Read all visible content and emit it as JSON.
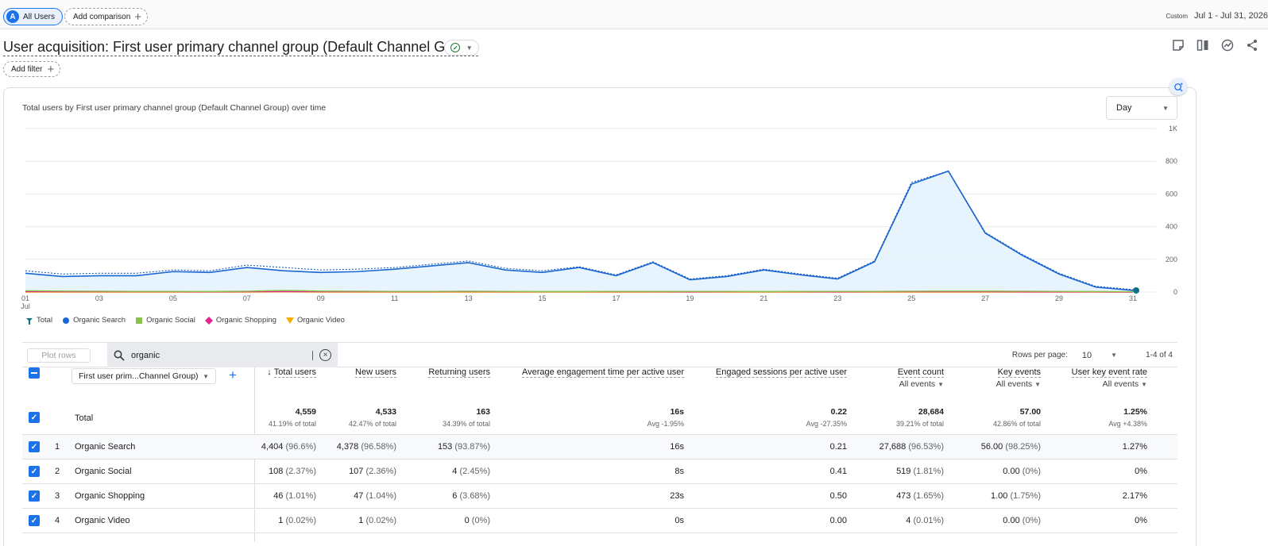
{
  "topbar": {
    "users_chip": {
      "avatar_letter": "A",
      "label": "All Users"
    },
    "add_comparison": "Add comparison",
    "date_tag": "Custom",
    "date_range": "Jul 1 - Jul 31, 2026"
  },
  "report": {
    "title": "User acquisition: First user primary channel group (Default Channel Group)",
    "add_filter": "Add filter"
  },
  "chart_card": {
    "title": "Total users by First user primary channel group (Default Channel Group) over time",
    "granularity": "Day"
  },
  "chart_data": {
    "type": "line",
    "x": [
      "01",
      "02",
      "03",
      "04",
      "05",
      "06",
      "07",
      "08",
      "09",
      "10",
      "11",
      "12",
      "13",
      "14",
      "15",
      "16",
      "17",
      "18",
      "19",
      "20",
      "21",
      "22",
      "23",
      "24",
      "25",
      "26",
      "27",
      "28",
      "29",
      "30",
      "31"
    ],
    "x_tick_labels": [
      "01",
      "03",
      "05",
      "07",
      "09",
      "11",
      "13",
      "15",
      "17",
      "19",
      "21",
      "23",
      "25",
      "27",
      "29",
      "31"
    ],
    "x_sublabel": "Jul",
    "y_tick_labels": [
      "1K",
      "800",
      "600",
      "400",
      "200",
      "0"
    ],
    "ylim": [
      0,
      1000
    ],
    "grid": true,
    "legend_position": "bottom-left",
    "series": [
      {
        "name": "Total",
        "color": "#1a73e8",
        "style": "dotted",
        "values": [
          130,
          110,
          115,
          115,
          135,
          130,
          165,
          150,
          135,
          140,
          150,
          170,
          190,
          145,
          130,
          155,
          105,
          185,
          80,
          100,
          140,
          110,
          85,
          190,
          670,
          740,
          365,
          230,
          115,
          35,
          15
        ]
      },
      {
        "name": "Organic Search",
        "color": "#1967d2",
        "style": "solid",
        "values": [
          115,
          95,
          100,
          100,
          125,
          120,
          150,
          130,
          120,
          125,
          140,
          160,
          180,
          135,
          120,
          150,
          100,
          180,
          75,
          95,
          135,
          105,
          80,
          185,
          660,
          740,
          360,
          225,
          110,
          30,
          10
        ]
      },
      {
        "name": "Organic Social",
        "color": "#8bc34a",
        "style": "solid",
        "values": [
          8,
          6,
          5,
          4,
          4,
          3,
          5,
          10,
          6,
          5,
          4,
          4,
          5,
          4,
          3,
          3,
          4,
          4,
          4,
          4,
          3,
          4,
          4,
          4,
          5,
          6,
          6,
          5,
          4,
          3,
          2
        ]
      },
      {
        "name": "Organic Shopping",
        "color": "#e52592",
        "style": "solid",
        "values": [
          3,
          2,
          2,
          2,
          2,
          1,
          2,
          3,
          2,
          2,
          2,
          2,
          3,
          2,
          2,
          2,
          2,
          2,
          1,
          2,
          2,
          2,
          1,
          2,
          2,
          2,
          2,
          1,
          1,
          1,
          0
        ]
      },
      {
        "name": "Organic Video",
        "color": "#f9ab00",
        "style": "solid",
        "values": [
          0,
          0,
          0,
          0,
          0,
          0,
          0,
          1,
          0,
          0,
          0,
          0,
          0,
          0,
          0,
          0,
          0,
          0,
          0,
          0,
          0,
          0,
          0,
          0,
          0,
          0,
          0,
          0,
          0,
          0,
          0
        ]
      }
    ]
  },
  "table_toolbar": {
    "plot_rows": "Plot rows",
    "search_value": "organic",
    "rows_per_page_label": "Rows per page:",
    "rows_per_page": "10",
    "range": "1-4 of 4"
  },
  "table": {
    "dimension_select": "First user prim...Channel Group)",
    "columns": [
      {
        "label": "Total users",
        "sorted": true,
        "sub": ""
      },
      {
        "label": "New users",
        "sub": ""
      },
      {
        "label": "Returning users",
        "sub": ""
      },
      {
        "label": "Average engagement time per active user",
        "sub": ""
      },
      {
        "label": "Engaged sessions per active user",
        "sub": ""
      },
      {
        "label": "Event count",
        "sub": "All events"
      },
      {
        "label": "Key events",
        "sub": "All events"
      },
      {
        "label": "User key event rate",
        "sub": "All events"
      }
    ],
    "total": {
      "label": "Total",
      "values": [
        "4,559",
        "4,533",
        "163",
        "16s",
        "0.22",
        "28,684",
        "57.00",
        "1.25%"
      ],
      "subs": [
        "41.19% of total",
        "42.47% of total",
        "34.39% of total",
        "Avg -1.95%",
        "Avg -27.35%",
        "39.21% of total",
        "42.86% of total",
        "Avg +4.38%"
      ]
    },
    "rows": [
      {
        "index": "1",
        "name": "Organic Search",
        "cells": [
          [
            "4,404",
            "(96.6%)"
          ],
          [
            "4,378",
            "(96.58%)"
          ],
          [
            "153",
            "(93.87%)"
          ],
          [
            "16s",
            ""
          ],
          [
            "0.21",
            ""
          ],
          [
            "27,688",
            "(96.53%)"
          ],
          [
            "56.00",
            "(98.25%)"
          ],
          [
            "1.27%",
            ""
          ]
        ]
      },
      {
        "index": "2",
        "name": "Organic Social",
        "cells": [
          [
            "108",
            "(2.37%)"
          ],
          [
            "107",
            "(2.36%)"
          ],
          [
            "4",
            "(2.45%)"
          ],
          [
            "8s",
            ""
          ],
          [
            "0.41",
            ""
          ],
          [
            "519",
            "(1.81%)"
          ],
          [
            "0.00",
            "(0%)"
          ],
          [
            "0%",
            ""
          ]
        ]
      },
      {
        "index": "3",
        "name": "Organic Shopping",
        "cells": [
          [
            "46",
            "(1.01%)"
          ],
          [
            "47",
            "(1.04%)"
          ],
          [
            "6",
            "(3.68%)"
          ],
          [
            "23s",
            ""
          ],
          [
            "0.50",
            ""
          ],
          [
            "473",
            "(1.65%)"
          ],
          [
            "1.00",
            "(1.75%)"
          ],
          [
            "2.17%",
            ""
          ]
        ]
      },
      {
        "index": "4",
        "name": "Organic Video",
        "cells": [
          [
            "1",
            "(0.02%)"
          ],
          [
            "1",
            "(0.02%)"
          ],
          [
            "0",
            "(0%)"
          ],
          [
            "0s",
            ""
          ],
          [
            "0.00",
            ""
          ],
          [
            "4",
            "(0.01%)"
          ],
          [
            "0.00",
            "(0%)"
          ],
          [
            "0%",
            ""
          ]
        ]
      }
    ]
  }
}
